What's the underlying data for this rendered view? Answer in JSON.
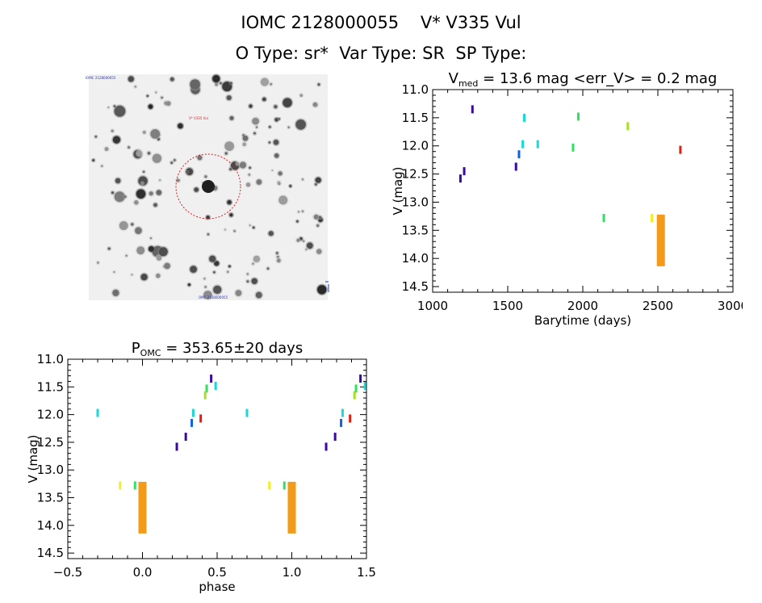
{
  "header": {
    "line1": "IOMC 2128000055    V* V335 Vul",
    "line2": "O Type: sr*  Var Type: SR  SP Type:"
  },
  "star_image": {
    "title": "IOMC 2128000055",
    "target_label": "V* V335 Vul",
    "bottom_label": "OMC 2128000055",
    "ring_color": "#d42020"
  },
  "chart_data": [
    {
      "type": "scatter",
      "name": "light_curve",
      "title_prefix": "V",
      "title_subscript": "med",
      "title_rest": " = 13.6 mag <err_V> = 0.2 mag",
      "xlabel": "Barytime (days)",
      "ylabel": "V (mag)",
      "xlim": [
        1000,
        3000
      ],
      "ylim": [
        11.0,
        14.6
      ],
      "y_inverted": true,
      "xticks": [
        1000,
        1500,
        2000,
        2500,
        3000
      ],
      "xtick_labels": [
        "1000",
        "1500",
        "2000",
        "2500",
        "3000"
      ],
      "yticks": [
        11.0,
        11.5,
        12.0,
        12.5,
        13.0,
        13.5,
        14.0,
        14.5
      ],
      "ytick_labels": [
        "11.0",
        "11.5",
        "12.0",
        "12.5",
        "13.0",
        "13.5",
        "14.0",
        "14.5"
      ],
      "series": [
        {
          "name": "indigo",
          "color": "#3a0aa0",
          "points": [
            [
              1185,
              12.58
            ],
            [
              1210,
              12.45
            ],
            [
              1265,
              11.35
            ],
            [
              1555,
              12.37
            ]
          ]
        },
        {
          "name": "blue",
          "color": "#1060e8",
          "points": [
            [
              1575,
              12.15
            ]
          ]
        },
        {
          "name": "cyan",
          "color": "#18d8d8",
          "points": [
            [
              1600,
              11.97
            ],
            [
              1610,
              11.5
            ],
            [
              1700,
              11.97
            ]
          ]
        },
        {
          "name": "green",
          "color": "#30e060",
          "points": [
            [
              1935,
              12.03
            ],
            [
              1970,
              11.48
            ],
            [
              2140,
              13.28
            ]
          ]
        },
        {
          "name": "yellow-green",
          "color": "#a8e020",
          "points": [
            [
              2300,
              11.65
            ]
          ]
        },
        {
          "name": "yellow",
          "color": "#f0f020",
          "points": [
            [
              2460,
              13.28
            ]
          ]
        },
        {
          "name": "orange",
          "color": "#f39b18",
          "points": [
            [
              2520,
              13.68
            ]
          ]
        },
        {
          "name": "red",
          "color": "#dd2010",
          "points": [
            [
              2650,
              12.07
            ]
          ]
        }
      ]
    },
    {
      "type": "scatter",
      "name": "phased_curve",
      "title_prefix": "P",
      "title_subscript": "OMC",
      "title_rest": " = 353.65±20 days",
      "xlabel": "phase",
      "ylabel": "V (mag)",
      "xlim": [
        -0.5,
        1.5
      ],
      "ylim": [
        11.0,
        14.6
      ],
      "y_inverted": true,
      "xticks": [
        -0.5,
        0.0,
        0.5,
        1.0,
        1.5
      ],
      "xtick_labels": [
        "−0.5",
        "0.0",
        "0.5",
        "1.0",
        "1.5"
      ],
      "yticks": [
        11.0,
        11.5,
        12.0,
        12.5,
        13.0,
        13.5,
        14.0,
        14.5
      ],
      "ytick_labels": [
        "11.0",
        "11.5",
        "12.0",
        "12.5",
        "13.0",
        "13.5",
        "14.0",
        "14.5"
      ],
      "series": [
        {
          "name": "indigo",
          "color": "#3a0aa0",
          "points": [
            [
              0.23,
              12.58
            ],
            [
              0.29,
              12.4
            ],
            [
              0.46,
              11.35
            ],
            [
              1.23,
              12.58
            ],
            [
              1.29,
              12.4
            ],
            [
              1.46,
              11.35
            ]
          ]
        },
        {
          "name": "blue",
          "color": "#1060e8",
          "points": [
            [
              0.33,
              12.15
            ],
            [
              1.33,
              12.15
            ]
          ]
        },
        {
          "name": "cyan",
          "color": "#18d8d8",
          "points": [
            [
              -0.3,
              11.97
            ],
            [
              0.34,
              11.97
            ],
            [
              0.49,
              11.48
            ],
            [
              0.7,
              11.97
            ],
            [
              1.34,
              11.97
            ],
            [
              1.49,
              11.48
            ]
          ]
        },
        {
          "name": "green",
          "color": "#30e060",
          "points": [
            [
              -0.05,
              13.28
            ],
            [
              0.43,
              11.53
            ],
            [
              0.95,
              13.28
            ],
            [
              1.43,
              11.53
            ]
          ]
        },
        {
          "name": "yellow-green",
          "color": "#a8e020",
          "points": [
            [
              0.42,
              11.65
            ],
            [
              1.42,
              11.65
            ]
          ]
        },
        {
          "name": "yellow",
          "color": "#f0f020",
          "points": [
            [
              -0.15,
              13.28
            ],
            [
              0.85,
              13.28
            ]
          ]
        },
        {
          "name": "orange",
          "color": "#f39b18",
          "points": [
            [
              0.0,
              13.68
            ],
            [
              1.0,
              13.68
            ]
          ]
        },
        {
          "name": "red",
          "color": "#dd2010",
          "points": [
            [
              0.39,
              12.07
            ],
            [
              1.39,
              12.07
            ]
          ]
        }
      ]
    }
  ]
}
